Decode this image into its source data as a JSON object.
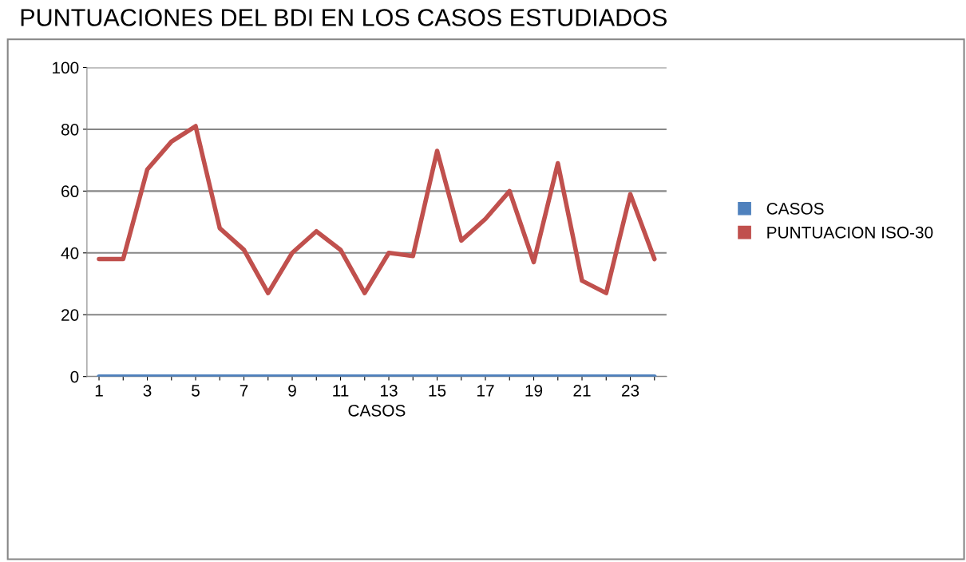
{
  "chart_data": {
    "type": "line",
    "title": "PUNTUACIONES DEL BDI EN LOS CASOS ESTUDIADOS",
    "xlabel": "CASOS",
    "categories": [
      "1",
      null,
      "3",
      null,
      "5",
      null,
      "7",
      null,
      "9",
      null,
      "11",
      null,
      "13",
      null,
      "15",
      null,
      "17",
      null,
      "19",
      null,
      "21",
      null,
      "23",
      null
    ],
    "series": [
      {
        "name": "CASOS",
        "color": "#4f81bd",
        "values": [
          0,
          0,
          0,
          0,
          0,
          0,
          0,
          0,
          0,
          0,
          0,
          0,
          0,
          0,
          0,
          0,
          0,
          0,
          0,
          0,
          0,
          0,
          0,
          0
        ]
      },
      {
        "name": "PUNTUACION ISO-30",
        "color": "#c0504d",
        "values": [
          38,
          38,
          67,
          76,
          81,
          48,
          41,
          27,
          40,
          47,
          41,
          27,
          40,
          39,
          73,
          44,
          51,
          60,
          37,
          69,
          31,
          27,
          59,
          38
        ]
      }
    ],
    "ylim": [
      0,
      100
    ],
    "yticks": [
      0,
      20,
      40,
      60,
      80,
      100
    ],
    "grid": "y",
    "legend": "right",
    "marker": "none",
    "line_style": "solid"
  }
}
